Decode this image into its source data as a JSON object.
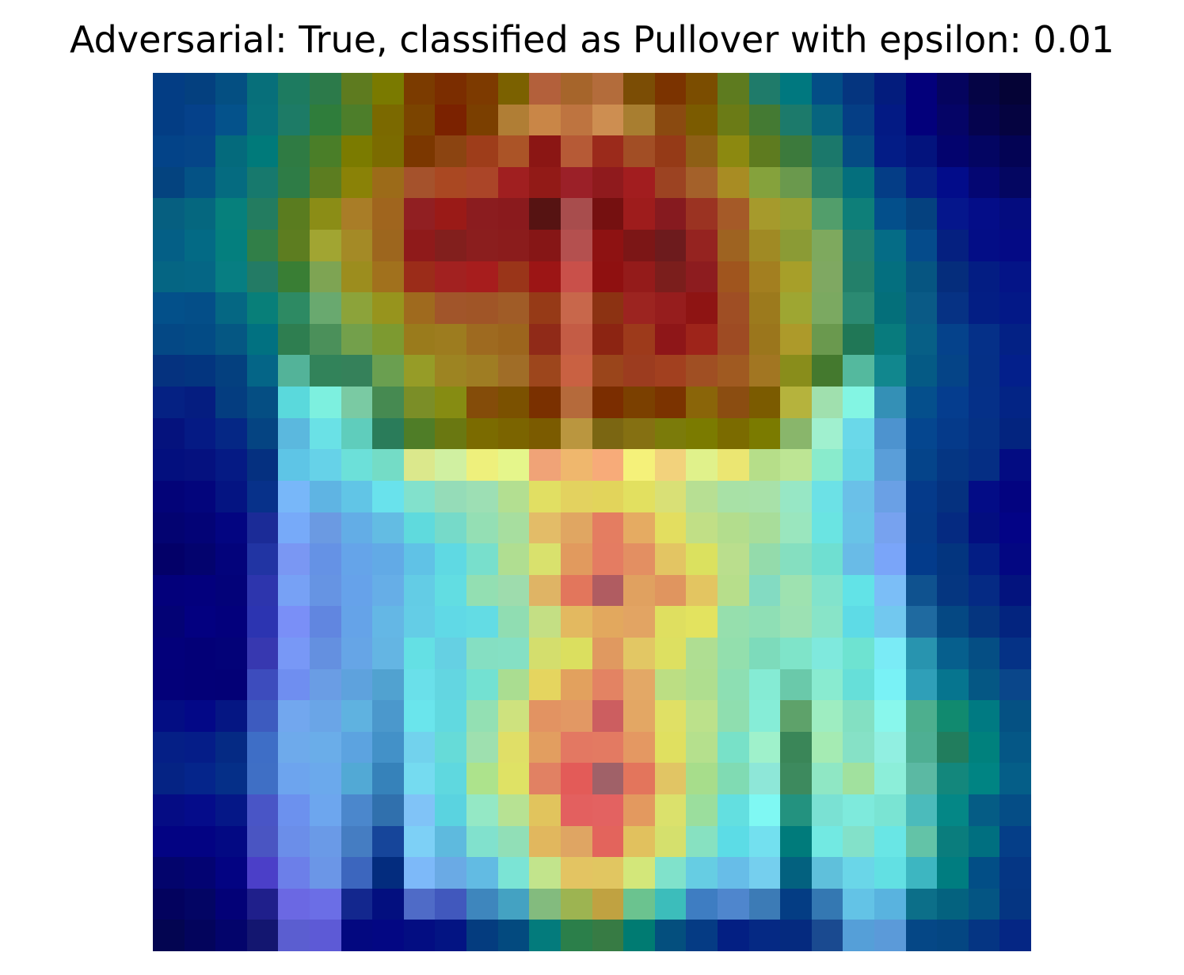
{
  "title": "Adversarial: True, classified as Pullover with epsilon: 0.01",
  "image": {
    "kind": "heatmap-overlay",
    "palette": "jet",
    "grid": 28,
    "rows": [
      [
        "#033d84",
        "#04407f",
        "#044f82",
        "#076f7a",
        "#1d7b60",
        "#2c7a4a",
        "#5e7b1f",
        "#7a7a00",
        "#7b3b00",
        "#7b2d00",
        "#7d3a00",
        "#7b6100",
        "#b3603b",
        "#a6652b",
        "#b36c3b",
        "#7b4d05",
        "#7b3300",
        "#7b4d00",
        "#5e7b1f",
        "#1f7b6a",
        "#00787f",
        "#034d86",
        "#05357f",
        "#031c7d",
        "#03007b",
        "#05045e",
        "#050445",
        "#050336"
      ],
      [
        "#033d84",
        "#05418a",
        "#04528b",
        "#07717b",
        "#1d7b66",
        "#2f7d3b",
        "#4d7e2a",
        "#7b6900",
        "#7b4400",
        "#7b2200",
        "#7b3f00",
        "#b07e35",
        "#c98647",
        "#be7440",
        "#cd8e51",
        "#a87e30",
        "#8a4a10",
        "#7b5b00",
        "#6b7b16",
        "#447a33",
        "#1c7a6b",
        "#07647f",
        "#053e85",
        "#031a84",
        "#03007b",
        "#050466",
        "#05034e",
        "#050340"
      ],
      [
        "#034388",
        "#054588",
        "#046a7c",
        "#007a7a",
        "#2f7b43",
        "#4a7e28",
        "#7b7b00",
        "#7b6b00",
        "#7b3700",
        "#8b4411",
        "#9e3d1a",
        "#ab5427",
        "#8b1614",
        "#b65a36",
        "#9b2a1b",
        "#a24e25",
        "#953a17",
        "#8e5f15",
        "#8c8910",
        "#5e7b1f",
        "#3c7a3c",
        "#1b786b",
        "#054b84",
        "#031c86",
        "#03137d",
        "#03036e",
        "#030562",
        "#030354"
      ],
      [
        "#04437f",
        "#045285",
        "#056b80",
        "#17796d",
        "#2e7c46",
        "#5c7d20",
        "#8a8207",
        "#9c6b19",
        "#a5522c",
        "#aa4822",
        "#ab4528",
        "#a01f20",
        "#921a17",
        "#9b2028",
        "#8f1a1d",
        "#a21d1f",
        "#9c4322",
        "#a4612a",
        "#a88c23",
        "#85a23c",
        "#6a994d",
        "#2a846a",
        "#046f7d",
        "#043d86",
        "#052085",
        "#020c8a",
        "#040672",
        "#040661"
      ],
      [
        "#065f80",
        "#05677f",
        "#06807c",
        "#237c60",
        "#5a7c1f",
        "#8b8d16",
        "#a97d27",
        "#a0651e",
        "#911f22",
        "#9a1a17",
        "#8b1c1f",
        "#8a1a1d",
        "#561312",
        "#a84d4d",
        "#751010",
        "#9e1c1c",
        "#861a1f",
        "#9b3322",
        "#a55a28",
        "#a69a2c",
        "#97a033",
        "#529e6b",
        "#0e7f79",
        "#034f8b",
        "#05417f",
        "#05168c",
        "#040d88",
        "#040c7f"
      ],
      [
        "#045f86",
        "#036a85",
        "#047f7e",
        "#317f48",
        "#5d7d20",
        "#a1a532",
        "#a48a26",
        "#9d661e",
        "#8f1a1a",
        "#821f1d",
        "#8b1e1e",
        "#8b1c1c",
        "#861616",
        "#b4504f",
        "#8e1212",
        "#7c1616",
        "#6d1b1d",
        "#952320",
        "#9e6321",
        "#a08a24",
        "#8b9b35",
        "#7ea95e",
        "#208070",
        "#056c86",
        "#054b8b",
        "#052080",
        "#030d86",
        "#040a85"
      ],
      [
        "#056583",
        "#056685",
        "#077e82",
        "#237b65",
        "#397e34",
        "#7ea453",
        "#9c8d1e",
        "#a1711d",
        "#9b2c19",
        "#a22120",
        "#a71d1d",
        "#9a3519",
        "#9c1515",
        "#c9504a",
        "#8f1010",
        "#941b1a",
        "#7b1e1c",
        "#8d1c1f",
        "#a0551e",
        "#a37f20",
        "#a79f29",
        "#7fa862",
        "#23806a",
        "#046f7f",
        "#065581",
        "#052d7c",
        "#031d83",
        "#041487"
      ],
      [
        "#03508a",
        "#044e88",
        "#056783",
        "#087f79",
        "#2d8a63",
        "#69a96f",
        "#8ca33a",
        "#97941d",
        "#9f6a1e",
        "#a1552a",
        "#a05527",
        "#a05c27",
        "#963a17",
        "#c8674b",
        "#8c3212",
        "#9c2420",
        "#961d1d",
        "#8e1413",
        "#9f4e24",
        "#9c7a1d",
        "#9ea632",
        "#7ba961",
        "#2b8a72",
        "#046f7a",
        "#0a5a86",
        "#063284",
        "#031e84",
        "#031887"
      ],
      [
        "#044885",
        "#034b85",
        "#055783",
        "#017181",
        "#2e7e50",
        "#4b905a",
        "#73a04b",
        "#7d9a30",
        "#9a7b1c",
        "#9d7c1f",
        "#9e6a20",
        "#9c651d",
        "#902a18",
        "#c45c45",
        "#8c2412",
        "#9d3a1b",
        "#8e1618",
        "#9e241a",
        "#9e4b23",
        "#9b761c",
        "#ad9a2a",
        "#6a994e",
        "#207756",
        "#087b7d",
        "#075f86",
        "#05428b",
        "#053088",
        "#032185"
      ],
      [
        "#05327f",
        "#03357f",
        "#04407f",
        "#046587",
        "#53b399",
        "#32835a",
        "#35815a",
        "#6a9f50",
        "#969c27",
        "#9d8422",
        "#9f7d23",
        "#a06d27",
        "#9d461c",
        "#c96142",
        "#9a451b",
        "#9c3c1f",
        "#a2401f",
        "#a04f23",
        "#a05a21",
        "#a27622",
        "#898d1b",
        "#44792e",
        "#54b99e",
        "#11878e",
        "#055a85",
        "#054487",
        "#053087",
        "#031f8b"
      ],
      [
        "#052183",
        "#051d80",
        "#043d80",
        "#054e83",
        "#5ad9dc",
        "#7df0df",
        "#7acaa3",
        "#468a51",
        "#7b8e27",
        "#868c12",
        "#844c09",
        "#7b5100",
        "#7a3000",
        "#b56a3b",
        "#7b2d00",
        "#7b4000",
        "#7b3300",
        "#8a6509",
        "#8b4d11",
        "#7b5b00",
        "#b5b33d",
        "#a0e0ae",
        "#83f5e3",
        "#3490b6",
        "#054f8c",
        "#053d8e",
        "#053088",
        "#032485"
      ],
      [
        "#05127d",
        "#051a84",
        "#052785",
        "#054482",
        "#5bb8de",
        "#6ae1e6",
        "#5fcdbc",
        "#2a7c5a",
        "#4f7d27",
        "#6a7811",
        "#7b6b00",
        "#7b6400",
        "#7b5b00",
        "#ba963f",
        "#7b6612",
        "#857012",
        "#7b7b0a",
        "#7b7b00",
        "#7b6b00",
        "#7b7b00",
        "#89b66b",
        "#a0f0cf",
        "#6ad8e9",
        "#4d93cf",
        "#05468f",
        "#053a8a",
        "#053185",
        "#03247f"
      ],
      [
        "#030f7e",
        "#05117f",
        "#051a84",
        "#053080",
        "#5ec5e6",
        "#66d2e8",
        "#6ce0d9",
        "#74dcc6",
        "#dbe88c",
        "#d0f0a1",
        "#eef07c",
        "#e5f68b",
        "#f0a377",
        "#efb76d",
        "#f7ab79",
        "#f5f17a",
        "#f2d27c",
        "#e0f18b",
        "#ebe672",
        "#b6de89",
        "#bde594",
        "#89ebcc",
        "#66d6e6",
        "#5a9ed9",
        "#05448a",
        "#053683",
        "#052e84",
        "#030c82"
      ],
      [
        "#030378",
        "#03057c",
        "#041482",
        "#07318a",
        "#78b7f9",
        "#5fb4e3",
        "#61c5e6",
        "#69e2ec",
        "#82e1cc",
        "#95dcb8",
        "#9ddfb4",
        "#b3df91",
        "#e1df63",
        "#e3d25f",
        "#e2d45b",
        "#e2e060",
        "#d9e076",
        "#b7df93",
        "#a8e1a6",
        "#a8e1a9",
        "#97e7c5",
        "#6ce1e6",
        "#6ac0e8",
        "#6aa0e5",
        "#053a8a",
        "#05317f",
        "#030c86",
        "#030380"
      ],
      [
        "#030371",
        "#030376",
        "#030581",
        "#1b2b97",
        "#77aaf9",
        "#6b9ae2",
        "#63ade6",
        "#63bce3",
        "#5fdadd",
        "#76dac9",
        "#94dfb4",
        "#a7de9f",
        "#e3bc68",
        "#e0a662",
        "#e47d61",
        "#e5ab62",
        "#e3de60",
        "#c1df86",
        "#b3dd8d",
        "#a8dd9a",
        "#9ae6be",
        "#6ae4e2",
        "#68c3e7",
        "#77a2ef",
        "#053a88",
        "#052a81",
        "#030e80",
        "#030386"
      ],
      [
        "#030068",
        "#03036e",
        "#03037b",
        "#2134a3",
        "#7a97f3",
        "#6592e5",
        "#65a4e9",
        "#62aae6",
        "#60c2e6",
        "#5fd9e3",
        "#78dfcc",
        "#b0de91",
        "#d9e16d",
        "#e19a5e",
        "#e47c62",
        "#e38f62",
        "#e3c563",
        "#dbe15f",
        "#bade8d",
        "#94dbab",
        "#85dfc0",
        "#6fdfd1",
        "#69bbe7",
        "#7aa5f9",
        "#033b8b",
        "#03357f",
        "#031d84",
        "#030782"
      ],
      [
        "#03007b",
        "#03007d",
        "#030279",
        "#2d35ad",
        "#77a1f5",
        "#6694e3",
        "#66a2ea",
        "#66aee7",
        "#63cce5",
        "#62dde2",
        "#93dfb2",
        "#9edcad",
        "#dfb465",
        "#e2765c",
        "#b05c61",
        "#e0a160",
        "#e0955f",
        "#e3c561",
        "#b7de8b",
        "#83dbc2",
        "#9ee2b0",
        "#82e3cc",
        "#62e3e7",
        "#7bbef7",
        "#0f528f",
        "#053680",
        "#052a84",
        "#03137e"
      ],
      [
        "#030275",
        "#030080",
        "#03007c",
        "#2c34b1",
        "#7a8ff7",
        "#6186e0",
        "#65a3e8",
        "#64b7e5",
        "#64cde6",
        "#60d9e6",
        "#63dce4",
        "#90ddb2",
        "#c4df84",
        "#e3b960",
        "#e2a85e",
        "#e2a463",
        "#dfdf60",
        "#e3e35f",
        "#96dfad",
        "#8fdfb5",
        "#9ce1b3",
        "#88e4c8",
        "#5edbe6",
        "#72c8ef",
        "#1f6aa0",
        "#054883",
        "#05357f",
        "#03247f"
      ],
      [
        "#03007a",
        "#030077",
        "#030278",
        "#3738b0",
        "#7898f6",
        "#6490e0",
        "#66a5e6",
        "#64b5e3",
        "#64e0e4",
        "#65d0e3",
        "#85dfc2",
        "#85e0c4",
        "#d4de6d",
        "#dbdf5f",
        "#e09960",
        "#e2c764",
        "#dde061",
        "#afde92",
        "#93dfad",
        "#7ddbbb",
        "#7fe4c9",
        "#7fe9dd",
        "#6ee3d1",
        "#7aebf6",
        "#2894af",
        "#065f8d",
        "#054e84",
        "#053286"
      ],
      [
        "#030079",
        "#030077",
        "#030076",
        "#3d4cbd",
        "#6f8ef0",
        "#6a9de4",
        "#5ea2dd",
        "#51a2d0",
        "#6ae0ea",
        "#63d6e1",
        "#73e1d2",
        "#aadd91",
        "#e5d55f",
        "#e2a15e",
        "#e38363",
        "#e3a866",
        "#bcde83",
        "#afde8f",
        "#8ddfb3",
        "#85ebd4",
        "#6ac9aa",
        "#89ebd0",
        "#66dfd9",
        "#79f2f6",
        "#2f9fb8",
        "#06758f",
        "#055784",
        "#0a468a"
      ],
      [
        "#030d83",
        "#030887",
        "#051683",
        "#3d5bbf",
        "#72a7ee",
        "#6aa5e7",
        "#5fb2e0",
        "#4b98cc",
        "#6ae5ec",
        "#61d9e0",
        "#93e0b3",
        "#cee27e",
        "#e29362",
        "#e29864",
        "#cc5e60",
        "#e3a764",
        "#e0e065",
        "#bce18b",
        "#8fdeaf",
        "#86edd7",
        "#5ea26a",
        "#9eedc1",
        "#83e0c2",
        "#89f7ec",
        "#4daf8e",
        "#118a6f",
        "#007a82",
        "#055183"
      ],
      [
        "#051f86",
        "#051d88",
        "#052a84",
        "#3e6ec6",
        "#6eaaeb",
        "#6aade9",
        "#5ca3e0",
        "#4391c8",
        "#72d2ed",
        "#66dbd8",
        "#9ee0af",
        "#e0df67",
        "#e29e60",
        "#e37862",
        "#e37a62",
        "#e49862",
        "#e0e060",
        "#b5e08d",
        "#78e1c8",
        "#9ff1cb",
        "#3a8658",
        "#a5ebb3",
        "#86e1c6",
        "#91efe1",
        "#4eaf93",
        "#217d5d",
        "#00817d",
        "#055786"
      ],
      [
        "#052384",
        "#05258b",
        "#052f88",
        "#3f6fc5",
        "#6da4ee",
        "#6ba9ec",
        "#52a9d5",
        "#3682ba",
        "#75dbf0",
        "#5fd8df",
        "#ade38c",
        "#dfe265",
        "#e18163",
        "#e35b58",
        "#a06168",
        "#e3755c",
        "#e1c564",
        "#a7dd8b",
        "#80dbb3",
        "#8ee7d8",
        "#3d8a5e",
        "#8fe7c4",
        "#a1e19e",
        "#8ceed9",
        "#5bb9a3",
        "#13877c",
        "#008483",
        "#055e88"
      ],
      [
        "#050c84",
        "#050c8a",
        "#051787",
        "#4955c6",
        "#6c91ee",
        "#6da6ee",
        "#4b87cc",
        "#3070ad",
        "#80c3f7",
        "#5ad3e0",
        "#94e8c5",
        "#b7e293",
        "#e1c45d",
        "#e3605f",
        "#e36261",
        "#e3995f",
        "#dbe16c",
        "#9bde9d",
        "#63dfe0",
        "#7ff8f3",
        "#23927f",
        "#7ae1d3",
        "#7eeadc",
        "#7ae4d3",
        "#4bbbbb",
        "#048786",
        "#055c85",
        "#054d86"
      ],
      [
        "#030383",
        "#030383",
        "#030983",
        "#4a55c2",
        "#6b8ee9",
        "#6a9ae7",
        "#457dc2",
        "#16459a",
        "#7dd0f6",
        "#5ebade",
        "#81e1cd",
        "#91dfb7",
        "#e1b75e",
        "#dfa563",
        "#e3645c",
        "#e1c15e",
        "#d5e06d",
        "#87e1c1",
        "#5cdce6",
        "#73e0ef",
        "#007b7b",
        "#72e9e2",
        "#83e1c9",
        "#69e6e5",
        "#63c3a7",
        "#0a7d7d",
        "#006f80",
        "#053e88"
      ],
      [
        "#03046c",
        "#030372",
        "#030382",
        "#4b3fc8",
        "#6c7fe9",
        "#6b96e7",
        "#3c66be",
        "#032c7e",
        "#7db9f9",
        "#6aaae5",
        "#62bbe3",
        "#7be4d5",
        "#c2e48c",
        "#e3c462",
        "#e1c661",
        "#d3e77a",
        "#80e2cb",
        "#66cde3",
        "#67bde8",
        "#75cfee",
        "#03617f",
        "#5fc0db",
        "#6ad6e8",
        "#62e0e3",
        "#3db6c1",
        "#007d80",
        "#024e86",
        "#053684"
      ],
      [
        "#03025e",
        "#030564",
        "#030177",
        "#1f1f8b",
        "#6b68e3",
        "#6b6ee6",
        "#13278e",
        "#030f7f",
        "#4f6bc7",
        "#4158bd",
        "#3e86bd",
        "#44a2c2",
        "#83bb7e",
        "#9db451",
        "#c0a241",
        "#6bc38f",
        "#3cbdbb",
        "#3e7dc2",
        "#4f86cd",
        "#3c7bb6",
        "#043d84",
        "#3478b2",
        "#63c3e6",
        "#59b3df",
        "#0c6f89",
        "#04627f",
        "#045583",
        "#053582"
      ],
      [
        "#030551",
        "#03045c",
        "#03046b",
        "#131670",
        "#5b5ed0",
        "#5d5ad6",
        "#030880",
        "#030783",
        "#030d82",
        "#031483",
        "#043c7f",
        "#034a7f",
        "#037b7c",
        "#2b7f4a",
        "#377b44",
        "#007b72",
        "#044f7e",
        "#053b84",
        "#031f83",
        "#052984",
        "#052a7f",
        "#1a4a90",
        "#559fd8",
        "#5b9ad9",
        "#054786",
        "#044682",
        "#053583",
        "#052684"
      ]
    ]
  }
}
